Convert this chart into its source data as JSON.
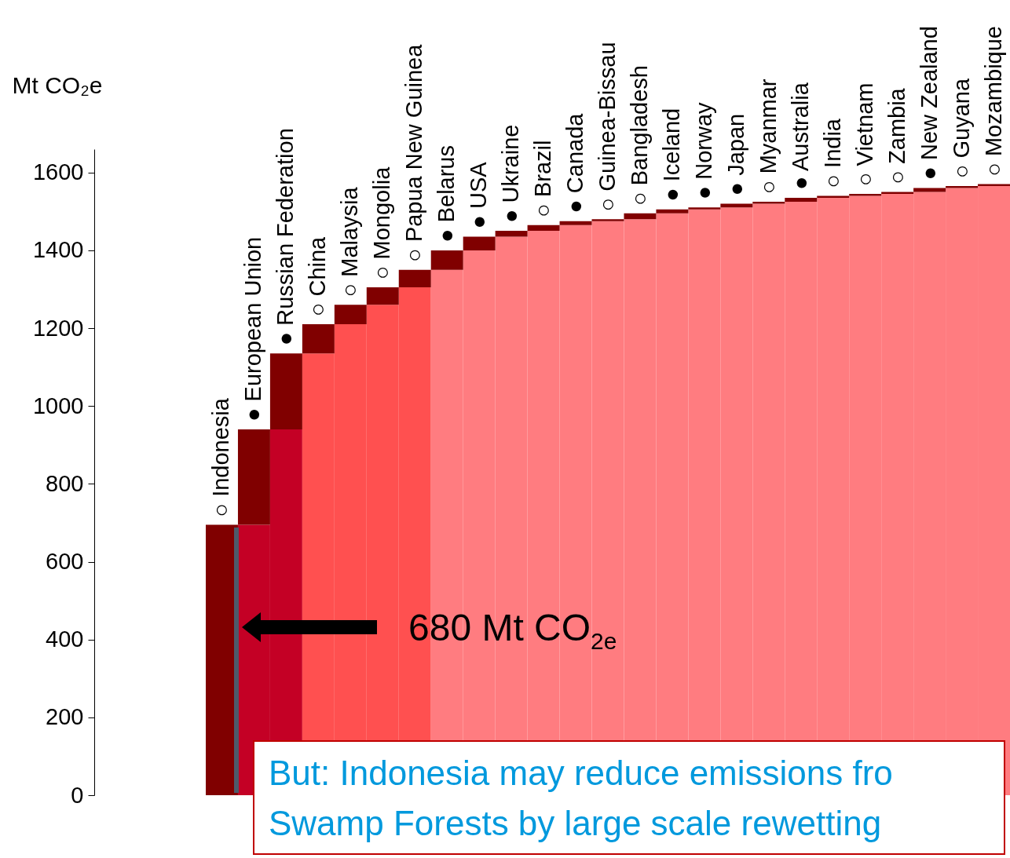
{
  "chart_data": {
    "type": "bar",
    "ylabel": "Mt CO₂e",
    "categories": [
      "○ Indonesia",
      "● European Union",
      "● Russian Federation",
      "○ China",
      "○ Malaysia",
      "○ Mongolia",
      "○ Papua New Guinea",
      "● Belarus",
      "● USA",
      "● Ukraine",
      "○ Brazil",
      "● Canada",
      "○ Guinea-Bissau",
      "○ Bangladesh",
      "● Iceland",
      "● Norway",
      "● Japan",
      "○ Myanmar",
      "● Australia",
      "○ India",
      "○ Vietnam",
      "○ Zambia",
      "● New Zealand",
      "○ Guyana",
      "○ Mozambique"
    ],
    "stacked": true,
    "series": [
      {
        "colors": [
          "#c40025",
          "#c40025",
          "#c40025",
          "#ff5050",
          "#ff5050",
          "#ff5050",
          "#ff5050",
          "#ff7c80",
          "#ff7c80",
          "#ff7c80",
          "#ff7c80",
          "#ff7c80",
          "#ff7c80",
          "#ff7c80",
          "#ff7c80",
          "#ff7c80",
          "#ff7c80",
          "#ff7c80",
          "#ff7c80",
          "#ff7c80",
          "#ff7c80",
          "#ff7c80",
          "#ff7c80",
          "#ff7c80",
          "#ff7c80"
        ],
        "values": [
          0,
          695,
          940,
          1135,
          1210,
          1260,
          1305,
          1350,
          1400,
          1435,
          1450,
          1465,
          1475,
          1480,
          1495,
          1505,
          1510,
          1520,
          1525,
          1535,
          1540,
          1545,
          1550,
          1560,
          1565
        ]
      },
      {
        "color": "#800000",
        "values": [
          695,
          245,
          195,
          75,
          50,
          45,
          45,
          50,
          35,
          15,
          15,
          10,
          5,
          15,
          10,
          5,
          10,
          5,
          10,
          5,
          5,
          5,
          10,
          5,
          5
        ]
      }
    ],
    "ylim": [
      0,
      1660
    ],
    "yticks": [
      0,
      200,
      400,
      600,
      800,
      1000,
      1200,
      1400,
      1600
    ],
    "grid": false,
    "annotations": [
      "680 Mt CO$_{2e}$",
      "But: Indonesia may reduce emissions fro",
      "Swamp Forests by large scale rewetting"
    ]
  }
}
